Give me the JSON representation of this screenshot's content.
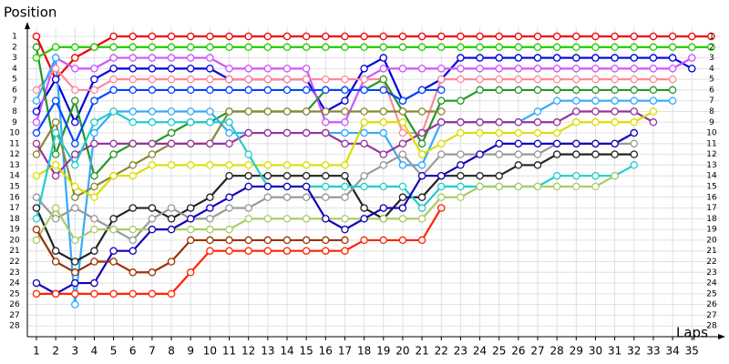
{
  "chart_data": {
    "type": "line",
    "y_label": "Position",
    "x_label": "Laps",
    "x": [
      1,
      2,
      3,
      4,
      5,
      6,
      7,
      8,
      9,
      10,
      11,
      12,
      13,
      14,
      15,
      16,
      17,
      18,
      19,
      20,
      21,
      22,
      23,
      24,
      25,
      26,
      27,
      28,
      29,
      30,
      31,
      32,
      33,
      34,
      35,
      36
    ],
    "xlim": [
      0.5,
      36.5
    ],
    "xticks": [
      1,
      2,
      3,
      4,
      5,
      6,
      7,
      8,
      9,
      10,
      11,
      12,
      13,
      14,
      15,
      16,
      17,
      18,
      19,
      20,
      21,
      22,
      23,
      24,
      25,
      26,
      27,
      28,
      29,
      30,
      31,
      32,
      33,
      34,
      35
    ],
    "ylim": [
      29,
      0
    ],
    "yticks": [
      1,
      2,
      3,
      4,
      5,
      6,
      7,
      8,
      9,
      10,
      11,
      12,
      13,
      14,
      15,
      16,
      17,
      18,
      19,
      20,
      21,
      22,
      23,
      24,
      25,
      26,
      27,
      28
    ],
    "grid": true,
    "series": [
      {
        "color": "#ee0000",
        "values": [
          1,
          5,
          3,
          2,
          1,
          1,
          1,
          1,
          1,
          1,
          1,
          1,
          1,
          1,
          1,
          1,
          1,
          1,
          1,
          1,
          1,
          1,
          1,
          1,
          1,
          1,
          1,
          1,
          1,
          1,
          1,
          1,
          1,
          1,
          1,
          1
        ]
      },
      {
        "color": "#22cc00",
        "values": [
          3,
          2,
          2,
          2,
          2,
          2,
          2,
          2,
          2,
          2,
          2,
          2,
          2,
          2,
          2,
          2,
          2,
          2,
          2,
          2,
          2,
          2,
          2,
          2,
          2,
          2,
          2,
          2,
          2,
          2,
          2,
          2,
          2,
          2,
          2,
          2
        ]
      },
      {
        "color": "#0000dd",
        "values": [
          8,
          5,
          9,
          5,
          4,
          4,
          4,
          4,
          4,
          4,
          5,
          5,
          5,
          5,
          5,
          8,
          7,
          4,
          3,
          7,
          6,
          5,
          3,
          3,
          3,
          3,
          3,
          3,
          3,
          3,
          3,
          3,
          3,
          3,
          4,
          null
        ]
      },
      {
        "color": "#cc55ff",
        "values": [
          9,
          3,
          4,
          4,
          3,
          3,
          3,
          3,
          3,
          3,
          4,
          4,
          4,
          4,
          4,
          9,
          9,
          5,
          4,
          4,
          4,
          4,
          4,
          4,
          4,
          4,
          4,
          4,
          4,
          4,
          4,
          4,
          4,
          4,
          3,
          null
        ]
      },
      {
        "color": "#ff8899",
        "values": [
          6,
          4,
          6,
          6,
          5,
          5,
          5,
          5,
          5,
          5,
          5,
          5,
          5,
          5,
          5,
          5,
          5,
          5,
          5,
          10,
          10,
          5,
          5,
          5,
          5,
          5,
          5,
          5,
          5,
          5,
          5,
          5,
          5,
          5,
          null,
          null
        ]
      },
      {
        "color": "#229922",
        "values": [
          2,
          12,
          7,
          14,
          12,
          11,
          11,
          10,
          9,
          9,
          8,
          8,
          8,
          8,
          8,
          6,
          6,
          6,
          5,
          8,
          11,
          7,
          7,
          6,
          6,
          6,
          6,
          6,
          6,
          6,
          6,
          6,
          6,
          6,
          null,
          null
        ]
      },
      {
        "color": "#33aaff",
        "values": [
          7,
          3,
          26,
          10,
          8,
          8,
          8,
          8,
          8,
          8,
          10,
          10,
          10,
          10,
          10,
          10,
          10,
          10,
          10,
          13,
          13,
          9,
          9,
          9,
          9,
          9,
          8,
          7,
          7,
          7,
          7,
          7,
          7,
          7,
          null,
          null
        ]
      },
      {
        "color": "#0044ff",
        "values": [
          10,
          7,
          11,
          7,
          6,
          6,
          6,
          6,
          6,
          6,
          6,
          6,
          6,
          6,
          6,
          6,
          6,
          6,
          6,
          7,
          6,
          6,
          null,
          null,
          null,
          null,
          null,
          null,
          null,
          null,
          null,
          null,
          null,
          null,
          null,
          null
        ]
      },
      {
        "color": "#888833",
        "values": [
          12,
          9,
          16,
          15,
          14,
          13,
          12,
          11,
          11,
          11,
          8,
          8,
          8,
          8,
          8,
          8,
          8,
          8,
          8,
          8,
          8,
          8,
          null,
          null,
          null,
          null,
          null,
          null,
          null,
          null,
          null,
          null,
          null,
          null,
          null,
          null
        ]
      },
      {
        "color": "#993399",
        "values": [
          11,
          14,
          12,
          11,
          11,
          11,
          11,
          11,
          11,
          11,
          11,
          10,
          10,
          10,
          10,
          10,
          11,
          11,
          12,
          11,
          10,
          9,
          9,
          9,
          9,
          9,
          9,
          9,
          8,
          8,
          8,
          8,
          9,
          null,
          null,
          null
        ]
      },
      {
        "color": "#dddd00",
        "values": [
          14,
          13,
          15,
          16,
          14,
          14,
          13,
          13,
          13,
          13,
          13,
          13,
          13,
          13,
          13,
          13,
          13,
          9,
          9,
          9,
          12,
          11,
          10,
          10,
          10,
          10,
          10,
          10,
          9,
          9,
          9,
          9,
          8,
          null,
          null,
          null
        ]
      },
      {
        "color": "#222222",
        "values": [
          17,
          21,
          22,
          21,
          18,
          17,
          17,
          18,
          17,
          16,
          14,
          14,
          14,
          14,
          14,
          14,
          14,
          17,
          18,
          16,
          16,
          14,
          14,
          14,
          14,
          13,
          13,
          12,
          12,
          12,
          12,
          12,
          null,
          null,
          null,
          null
        ]
      },
      {
        "color": "#999999",
        "values": [
          16,
          18,
          17,
          18,
          19,
          20,
          18,
          17,
          18,
          18,
          17,
          17,
          16,
          16,
          16,
          16,
          16,
          14,
          13,
          12,
          14,
          12,
          12,
          12,
          12,
          12,
          12,
          11,
          11,
          11,
          11,
          11,
          null,
          null,
          null,
          null
        ]
      },
      {
        "color": "#22cccc",
        "values": [
          18,
          10,
          13,
          9,
          8,
          9,
          9,
          9,
          9,
          9,
          9,
          12,
          15,
          15,
          15,
          15,
          15,
          15,
          15,
          15,
          17,
          15,
          15,
          15,
          15,
          15,
          15,
          14,
          14,
          14,
          14,
          13,
          null,
          null,
          null,
          null
        ]
      },
      {
        "color": "#aacc66",
        "values": [
          20,
          17,
          20,
          19,
          19,
          19,
          19,
          19,
          19,
          19,
          19,
          18,
          18,
          18,
          18,
          18,
          18,
          18,
          18,
          18,
          18,
          16,
          16,
          15,
          15,
          15,
          15,
          15,
          15,
          15,
          14,
          null,
          null,
          null,
          null,
          null
        ]
      },
      {
        "color": "#1100bb",
        "values": [
          24,
          25,
          24,
          24,
          21,
          21,
          19,
          19,
          18,
          17,
          16,
          15,
          15,
          15,
          15,
          18,
          19,
          18,
          17,
          17,
          14,
          14,
          13,
          12,
          11,
          11,
          11,
          11,
          11,
          11,
          11,
          10,
          null,
          null,
          null,
          null
        ]
      },
      {
        "color": "#ff2200",
        "values": [
          25,
          25,
          25,
          25,
          25,
          25,
          25,
          25,
          23,
          21,
          21,
          21,
          21,
          21,
          21,
          21,
          21,
          20,
          20,
          20,
          20,
          17,
          null,
          null,
          null,
          null,
          null,
          null,
          null,
          null,
          null,
          null,
          null,
          null,
          null,
          null
        ]
      },
      {
        "color": "#993300",
        "values": [
          19,
          22,
          23,
          22,
          22,
          23,
          23,
          22,
          20,
          20,
          20,
          20,
          20,
          20,
          20,
          20,
          20,
          null,
          null,
          null,
          null,
          null,
          null,
          null,
          null,
          null,
          null,
          null,
          null,
          null,
          null,
          null,
          null,
          null,
          null,
          null
        ]
      }
    ]
  }
}
